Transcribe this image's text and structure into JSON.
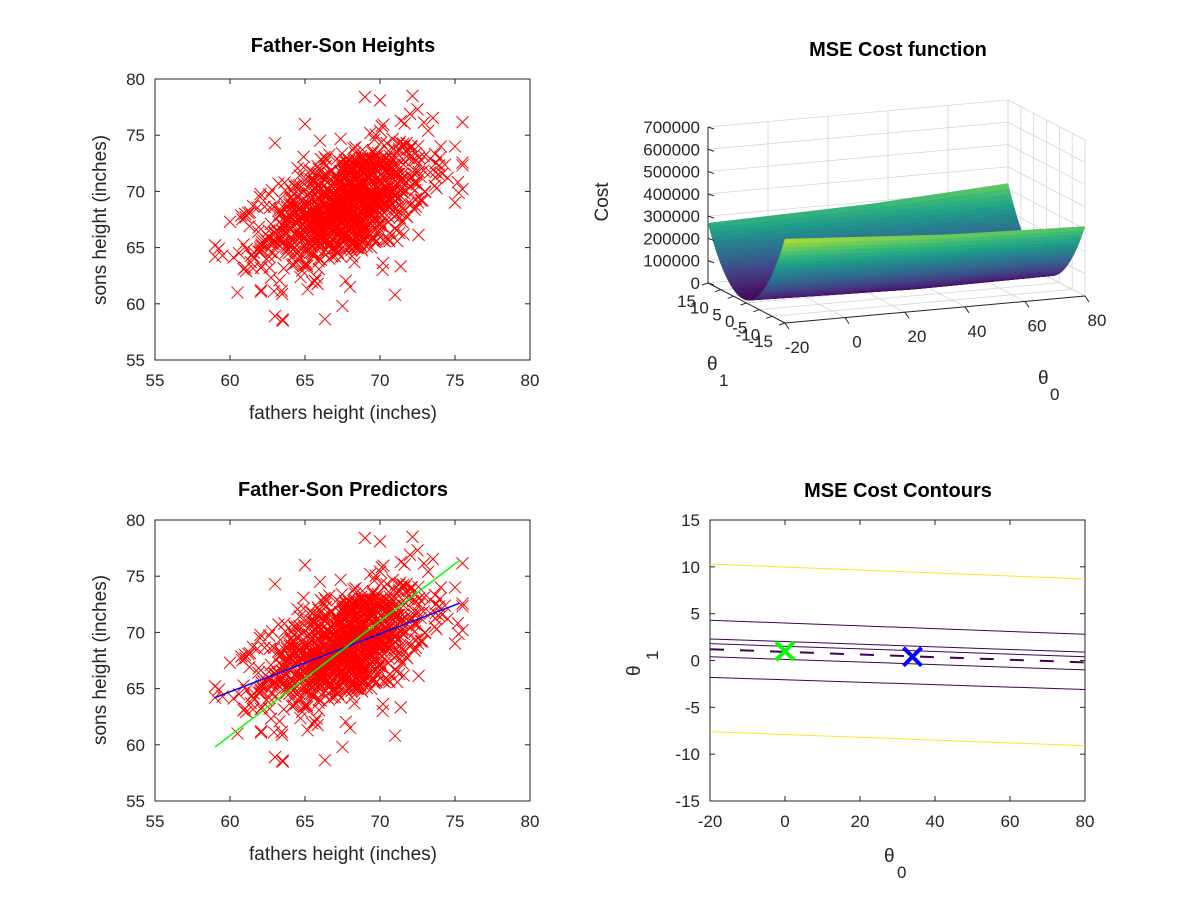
{
  "chart_data": [
    {
      "type": "scatter",
      "title": "Father-Son Heights",
      "xlabel": "fathers height (inches)",
      "ylabel": "sons height (inches)",
      "xlim": [
        55,
        80
      ],
      "ylim": [
        55,
        80
      ],
      "xticks": [
        "55",
        "60",
        "65",
        "70",
        "75",
        "80"
      ],
      "yticks": [
        "55",
        "60",
        "65",
        "70",
        "75",
        "80"
      ],
      "marker": "x",
      "marker_color": "#ff0000",
      "series": [
        {
          "x_mean": 67.7,
          "y_mean": 68.7,
          "x_sd": 2.7,
          "y_sd": 2.8,
          "correlation": 0.5,
          "x_range": [
            59,
            75.5
          ],
          "y_range": [
            58.5,
            78.5
          ],
          "points": [
            [
              59,
              65.2
            ],
            [
              59.5,
              64.3
            ],
            [
              60,
              67.3
            ],
            [
              60.5,
              61
            ],
            [
              61,
              68
            ],
            [
              62,
              65
            ],
            [
              63,
              58.9
            ],
            [
              63.5,
              58.6
            ],
            [
              63,
              74.3
            ],
            [
              65,
              76
            ],
            [
              67.5,
              59.8
            ],
            [
              68,
              61.5
            ],
            [
              69,
              78.4
            ],
            [
              70,
              78.1
            ],
            [
              71,
              60.8
            ],
            [
              72,
              76.9
            ],
            [
              72.5,
              77.3
            ],
            [
              73,
              70
            ],
            [
              74,
              73
            ],
            [
              75,
              74
            ],
            [
              75.5,
              70.2
            ],
            [
              75,
              69
            ],
            [
              74.5,
              71.2
            ],
            [
              62,
              69.5
            ],
            [
              66,
              74.5
            ]
          ]
        }
      ]
    },
    {
      "type": "surface",
      "title": "MSE Cost function",
      "xlabel": "θ0",
      "ylabel": "θ1",
      "zlabel": "Cost",
      "xlim": [
        -20,
        80
      ],
      "ylim": [
        -15,
        15
      ],
      "zlim": [
        0,
        700000
      ],
      "xticks": [
        "-20",
        "0",
        "20",
        "40",
        "60",
        "80"
      ],
      "yticks": [
        "-15",
        "-10",
        "-5",
        "0",
        "5",
        "10",
        "15"
      ],
      "zticks": [
        "0",
        "100000",
        "200000",
        "300000",
        "400000",
        "500000",
        "600000",
        "700000"
      ],
      "colormap": "viridis"
    },
    {
      "type": "scatter",
      "title": "Father-Son Predictors",
      "xlabel": "fathers height (inches)",
      "ylabel": "sons height (inches)",
      "xlim": [
        55,
        80
      ],
      "ylim": [
        55,
        80
      ],
      "xticks": [
        "55",
        "60",
        "65",
        "70",
        "75",
        "80"
      ],
      "yticks": [
        "55",
        "60",
        "65",
        "70",
        "75",
        "80"
      ],
      "marker_color": "#ff0000",
      "lines": [
        {
          "color": "#0000ff",
          "x": [
            59,
            75.3
          ],
          "y": [
            64.2,
            72.6
          ]
        },
        {
          "color": "#00ff00",
          "x": [
            59,
            75.3
          ],
          "y": [
            59.8,
            76.4
          ]
        }
      ]
    },
    {
      "type": "contour",
      "title": "MSE Cost Contours",
      "xlabel": "θ0",
      "ylabel": "θ1",
      "xlim": [
        -20,
        80
      ],
      "ylim": [
        -15,
        15
      ],
      "xticks": [
        "-20",
        "0",
        "20",
        "40",
        "60",
        "80"
      ],
      "yticks": [
        "-15",
        "-10",
        "-5",
        "0",
        "5",
        "10",
        "15"
      ],
      "contours": [
        {
          "color": "#fde725",
          "y_at_x_min": 10.3,
          "y_at_x_max": 8.7
        },
        {
          "color": "#fde725",
          "y_at_x_min": -7.6,
          "y_at_x_max": -9.1
        },
        {
          "color": "#440154",
          "y_at_x_min": 4.3,
          "y_at_x_max": 2.8
        },
        {
          "color": "#440154",
          "y_at_x_min": 2.3,
          "y_at_x_max": 0.9
        },
        {
          "color": "#440154",
          "y_at_x_min": 1.8,
          "y_at_x_max": 0.4
        },
        {
          "color": "#440154",
          "y_at_x_min": 0.4,
          "y_at_x_max": -1.0
        },
        {
          "color": "#440154",
          "y_at_x_min": -1.8,
          "y_at_x_max": -3.1
        }
      ],
      "markers": [
        {
          "color": "#00ff00",
          "x": 0,
          "y": 1
        },
        {
          "color": "#0000ff",
          "x": 34,
          "y": 0.4
        }
      ]
    }
  ]
}
